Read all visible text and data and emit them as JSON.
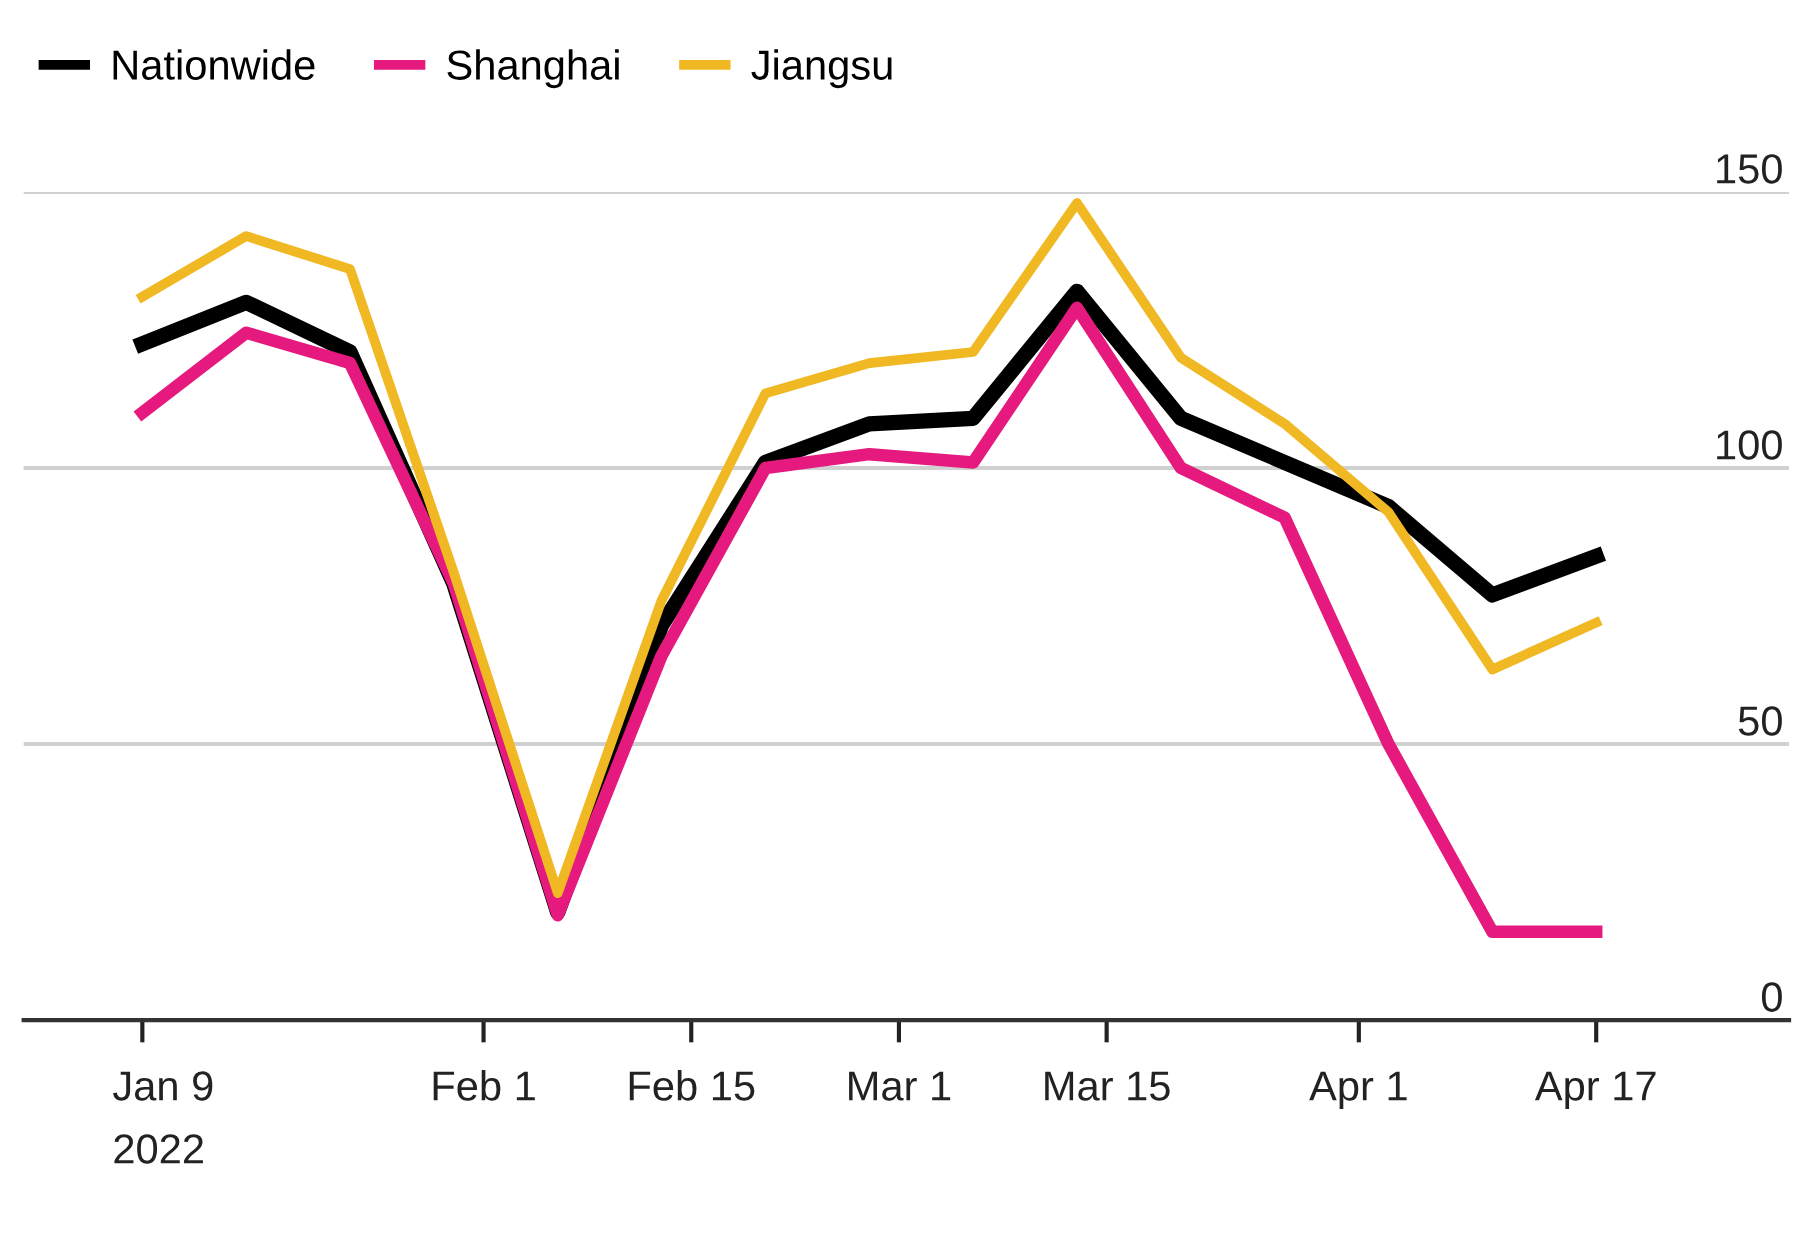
{
  "chart_data": {
    "type": "line",
    "x": [
      "2022-01-09",
      "2022-01-16",
      "2022-01-23",
      "2022-01-30",
      "2022-02-06",
      "2022-02-13",
      "2022-02-20",
      "2022-02-27",
      "2022-03-06",
      "2022-03-13",
      "2022-03-20",
      "2022-03-27",
      "2022-04-03",
      "2022-04-10",
      "2022-04-17"
    ],
    "series": [
      {
        "name": "Nationwide",
        "color": "#000000",
        "values": [
          122.5,
          130,
          121,
          79,
          19.5,
          71.5,
          101,
          108,
          109,
          132,
          109,
          101,
          93,
          77,
          84
        ]
      },
      {
        "name": "Shanghai",
        "color": "#e5197e",
        "values": [
          110,
          124.5,
          119,
          79,
          19,
          66,
          100,
          102.5,
          101,
          129,
          100,
          91,
          50,
          16,
          16
        ]
      },
      {
        "name": "Jiangsu",
        "color": "#f0b823",
        "values": [
          131,
          142,
          136,
          81,
          23,
          76,
          113.5,
          119,
          121,
          148,
          120,
          108,
          92,
          63.5,
          72
        ]
      }
    ],
    "xlim": [
      "2022-01-01",
      "2022-04-30"
    ],
    "xticks": [
      {
        "value": "2022-01-09",
        "label": "Jan 9\n2022"
      },
      {
        "value": "2022-02-01",
        "label": "Feb 1"
      },
      {
        "value": "2022-02-15",
        "label": "Feb 15"
      },
      {
        "value": "2022-03-01",
        "label": "Mar 1"
      },
      {
        "value": "2022-03-15",
        "label": "Mar 15"
      },
      {
        "value": "2022-04-01",
        "label": "Apr 1"
      },
      {
        "value": "2022-04-17",
        "label": "Apr 17"
      }
    ],
    "ylim": [
      0,
      150
    ],
    "yticks": [
      0,
      50,
      100,
      150
    ],
    "grid": "y",
    "legend": "top left",
    "marker": "none",
    "line_style": "solid"
  }
}
